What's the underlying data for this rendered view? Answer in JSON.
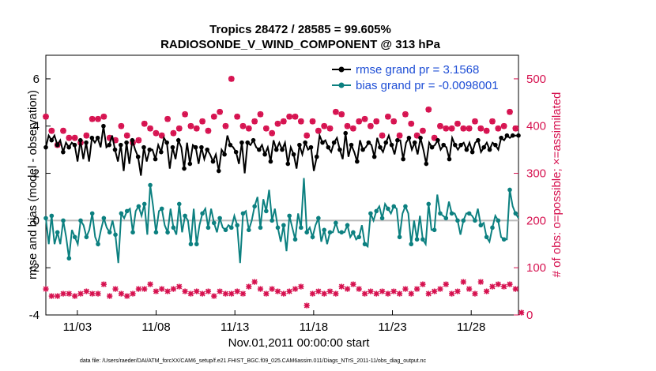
{
  "chart_data": {
    "type": "line",
    "title": "Tropics 28472 / 28585 = 99.605%",
    "subtitle": "RADIOSONDE_V_WIND_COMPONENT @ 313 hPa",
    "xlabel": "Nov.01,2011 00:00:00 start",
    "ylabel_left": "rmse and bias (model - observation)",
    "ylabel_right": "# of obs: o=possible; ×=assimilated",
    "footer": "data file: /Users/raeder/DAI/ATM_forcXX/CAM6_setup/f.e21.FHIST_BGC.f09_025.CAM6assim.011/Diags_NTrS_2011-11/obs_diag_output.nc",
    "x_ticks": [
      "11/03",
      "11/08",
      "11/13",
      "11/18",
      "11/23",
      "11/28"
    ],
    "x_tick_days": [
      3,
      8,
      13,
      18,
      23,
      28
    ],
    "xlim": [
      1.0,
      31.0
    ],
    "ylim_left": [
      -4,
      7
    ],
    "yticks_left": [
      "-4",
      "-2",
      "0",
      "2",
      "4",
      "6"
    ],
    "ylim_right": [
      0,
      550
    ],
    "yticks_right": [
      "0",
      "100",
      "200",
      "300",
      "400",
      "500"
    ],
    "colors": {
      "rmse": "#000000",
      "bias": "#0c8080",
      "obs": "#d6114f",
      "legend_text": "#1f4fd6",
      "zero_line": "#bbbbbb"
    },
    "series": [
      {
        "name": "rmse grand pr = 3.1568",
        "axis": "left",
        "values": [
          3.1,
          3.6,
          3.4,
          3.6,
          3.2,
          3.4,
          2.9,
          3.3,
          3.1,
          3.3,
          3.2,
          2.5,
          3.4,
          2.6,
          3.3,
          2.5,
          3.5,
          3.3,
          3.5,
          3.1,
          4.0,
          3.1,
          3.2,
          3.6,
          3.0,
          2.5,
          3.2,
          2.1,
          3.3,
          2.4,
          3.4,
          3.0,
          2.7,
          1.9,
          3.1,
          2.5,
          3.0,
          3.0,
          2.6,
          3.2,
          2.9,
          3.5,
          3.3,
          2.2,
          3.1,
          2.6,
          3.4,
          3.1,
          2.2,
          3.3,
          2.4,
          3.2,
          3.1,
          2.4,
          3.1,
          2.6,
          3.0,
          2.8,
          2.5,
          2.8,
          2.1,
          3.0,
          2.8,
          3.6,
          3.2,
          3.1,
          2.9,
          2.4,
          3.3,
          2.0,
          3.3,
          3.2,
          3.4,
          3.1,
          3.0,
          3.2,
          2.8,
          3.1,
          2.5,
          3.4,
          3.0,
          3.3,
          3.0,
          3.3,
          2.4,
          3.1,
          2.8,
          2.2,
          3.2,
          2.8,
          3.3,
          3.0,
          3.1,
          2.1,
          2.7,
          3.6,
          3.3,
          3.4,
          3.1,
          2.9,
          3.3,
          3.5,
          3.0,
          2.6,
          3.7,
          2.7,
          3.2,
          2.9,
          2.5,
          3.4,
          3.0,
          3.1,
          3.3,
          3.2,
          2.7,
          3.5,
          3.1,
          2.9,
          3.3,
          3.6,
          3.2,
          2.8,
          3.4,
          3.4,
          2.6,
          3.3,
          3.5,
          3.0,
          3.3,
          2.8,
          3.5,
          3.0,
          2.4,
          3.3,
          3.1,
          3.2,
          3.4,
          3.0,
          3.2,
          3.1,
          2.6,
          3.5,
          3.2,
          3.0,
          3.2,
          3.3,
          3.0,
          3.3,
          2.9,
          3.3,
          3.4,
          2.9,
          3.1,
          3.3,
          3.0,
          3.3,
          3.2,
          3.0,
          3.5,
          3.4,
          3.6,
          3.5,
          3.6,
          3.6,
          3.6
        ]
      },
      {
        "name": "bias grand pr = -0.0098001",
        "axis": "left",
        "values": [
          0.1,
          -1.0,
          0.2,
          -1.0,
          -0.5,
          -1.0,
          0.0,
          -0.7,
          -1.6,
          -0.4,
          -0.7,
          -1.0,
          0.0,
          -0.2,
          -0.7,
          -0.4,
          0.3,
          -0.7,
          -1.0,
          -0.4,
          0.1,
          -0.3,
          -0.5,
          0.0,
          -0.6,
          -1.8,
          0.3,
          0.1,
          0.4,
          0.5,
          -0.5,
          0.4,
          0.6,
          0.2,
          0.7,
          -0.6,
          1.5,
          0.6,
          -0.5,
          0.4,
          0.5,
          -0.2,
          -0.5,
          0.5,
          -0.3,
          -0.6,
          0.7,
          -0.5,
          0.2,
          0.0,
          -1.0,
          0.5,
          -1.0,
          -0.2,
          0.3,
          0.5,
          -0.3,
          0.5,
          -0.1,
          -0.5,
          0.1,
          -0.3,
          -0.4,
          -0.2,
          -0.3,
          0.2,
          -0.2,
          -1.8,
          0.3,
          0.4,
          -0.4,
          0.0,
          0.6,
          1.0,
          -0.3,
          0.9,
          0.4,
          1.3,
          0.0,
          0.5,
          -0.3,
          -0.9,
          -0.2,
          -1.3,
          0.2,
          -0.3,
          -0.8,
          0.3,
          -0.3,
          1.8,
          -0.5,
          -0.3,
          -0.7,
          -0.2,
          0.1,
          -0.9,
          -0.4,
          -1.0,
          -0.5,
          -0.5,
          -0.1,
          -0.5,
          -0.5,
          -0.5,
          -0.2,
          -0.7,
          -0.5,
          -0.8,
          -0.7,
          -0.2,
          -1.0,
          -1.1,
          0.3,
          0.0,
          0.4,
          0.6,
          0.1,
          0.7,
          0.5,
          0.3,
          0.6,
          0.5,
          -0.7,
          0.3,
          0.6,
          0.3,
          -1.0,
          0.0,
          -0.8,
          0.2,
          -0.8,
          -1.0,
          0.7,
          -0.4,
          -0.4,
          1.1,
          0.3,
          0.2,
          0.1,
          0.8,
          0.3,
          0.3,
          0.0,
          -0.6,
          0.0,
          0.3,
          0.3,
          0.2,
          0.0,
          0.5,
          -0.2,
          -0.1,
          -0.7,
          -0.9,
          -0.3,
          0.2,
          0.0,
          -0.7,
          -0.8,
          -0.8,
          1.3,
          0.6,
          0.3,
          0.1
        ]
      }
    ],
    "obs_possible": [
      420,
      400,
      390,
      375,
      360,
      390,
      390,
      380,
      375,
      365,
      375,
      370,
      365,
      380,
      380,
      410,
      415,
      395,
      415,
      410,
      420,
      390,
      375,
      380,
      370,
      385,
      400,
      410,
      380,
      380,
      365,
      375,
      370,
      385,
      405,
      390,
      395,
      420,
      385,
      365,
      380,
      395,
      415,
      420,
      385,
      410,
      395,
      385,
      425,
      390,
      400,
      375,
      395,
      405,
      410,
      410,
      390,
      405,
      420,
      395,
      430,
      385,
      400,
      430,
      500,
      480,
      420,
      385,
      400,
      415,
      395,
      440,
      410,
      420,
      425,
      380,
      395,
      420,
      385,
      430,
      405,
      420,
      410,
      445,
      420,
      405,
      420,
      425,
      410,
      455,
      380,
      425,
      410,
      420,
      390,
      415,
      400,
      425,
      395,
      410,
      430,
      400,
      425,
      390,
      400,
      420,
      395,
      405,
      410,
      420,
      415,
      390,
      400,
      425,
      410,
      395,
      380,
      405,
      420,
      400,
      410,
      395,
      380,
      415,
      425,
      385,
      405,
      395,
      380,
      420,
      390,
      400,
      435,
      385,
      375,
      390,
      400,
      410,
      395,
      380,
      395,
      390,
      405,
      385,
      395,
      405,
      395,
      390,
      410,
      380,
      395,
      400,
      390,
      385,
      410,
      385,
      395,
      405,
      400,
      380,
      430,
      385,
      395,
      405
    ],
    "obs_assimilated": [
      55,
      45,
      40,
      45,
      40,
      50,
      45,
      55,
      45,
      50,
      40,
      55,
      45,
      60,
      50,
      30,
      45,
      60,
      45,
      55,
      65,
      50,
      40,
      45,
      55,
      65,
      45,
      60,
      40,
      50,
      45,
      35,
      55,
      45,
      55,
      50,
      65,
      40,
      50,
      45,
      55,
      60,
      50,
      45,
      55,
      40,
      60,
      45,
      50,
      55,
      45,
      40,
      50,
      65,
      45,
      55,
      50,
      60,
      40,
      55,
      50,
      65,
      45,
      60,
      45,
      55,
      50,
      85,
      45,
      55,
      60,
      45,
      70,
      50,
      55,
      60,
      45,
      70,
      55,
      60,
      50,
      55,
      45,
      60,
      50,
      65,
      55,
      40,
      60,
      50,
      20,
      55,
      45,
      65,
      50,
      55,
      45,
      60,
      50,
      55,
      45,
      50,
      60,
      50,
      55,
      45,
      65,
      50,
      55,
      60,
      45,
      55,
      50,
      60,
      45,
      55,
      50,
      65,
      45,
      60,
      50,
      55,
      45,
      60,
      55,
      50,
      45,
      60,
      55,
      50,
      65,
      55,
      45,
      60,
      50,
      75,
      55,
      50,
      65,
      60,
      45,
      55,
      50,
      60,
      70,
      50,
      55,
      65,
      45,
      60,
      70,
      55,
      50,
      65,
      60,
      55,
      65,
      70,
      60,
      55,
      65,
      60,
      55,
      45,
      5
    ]
  }
}
